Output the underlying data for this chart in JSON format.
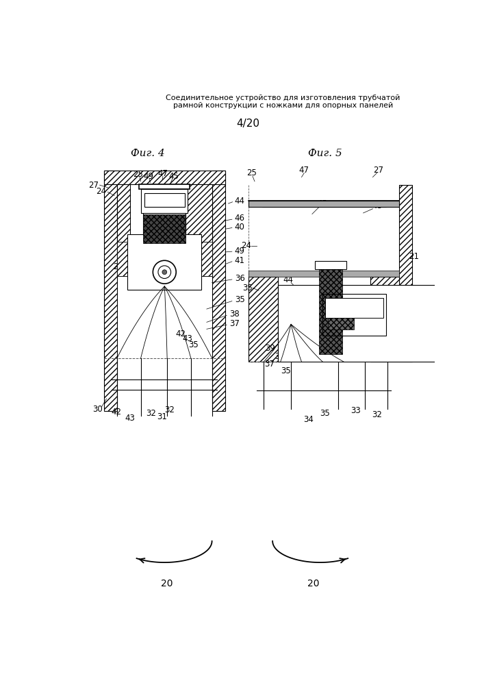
{
  "title_line1": "Соединительное устройство для изготовления трубчатой",
  "title_line2": "рамной конструкции с ножками для опорных панелей",
  "page_label": "4/20",
  "fig4_label": "Фиг. 4",
  "fig5_label": "Фиг. 5",
  "bg_color": "#ffffff",
  "title_fontsize": 8.0,
  "label_fontsize": 11,
  "number_fontsize": 8.5
}
